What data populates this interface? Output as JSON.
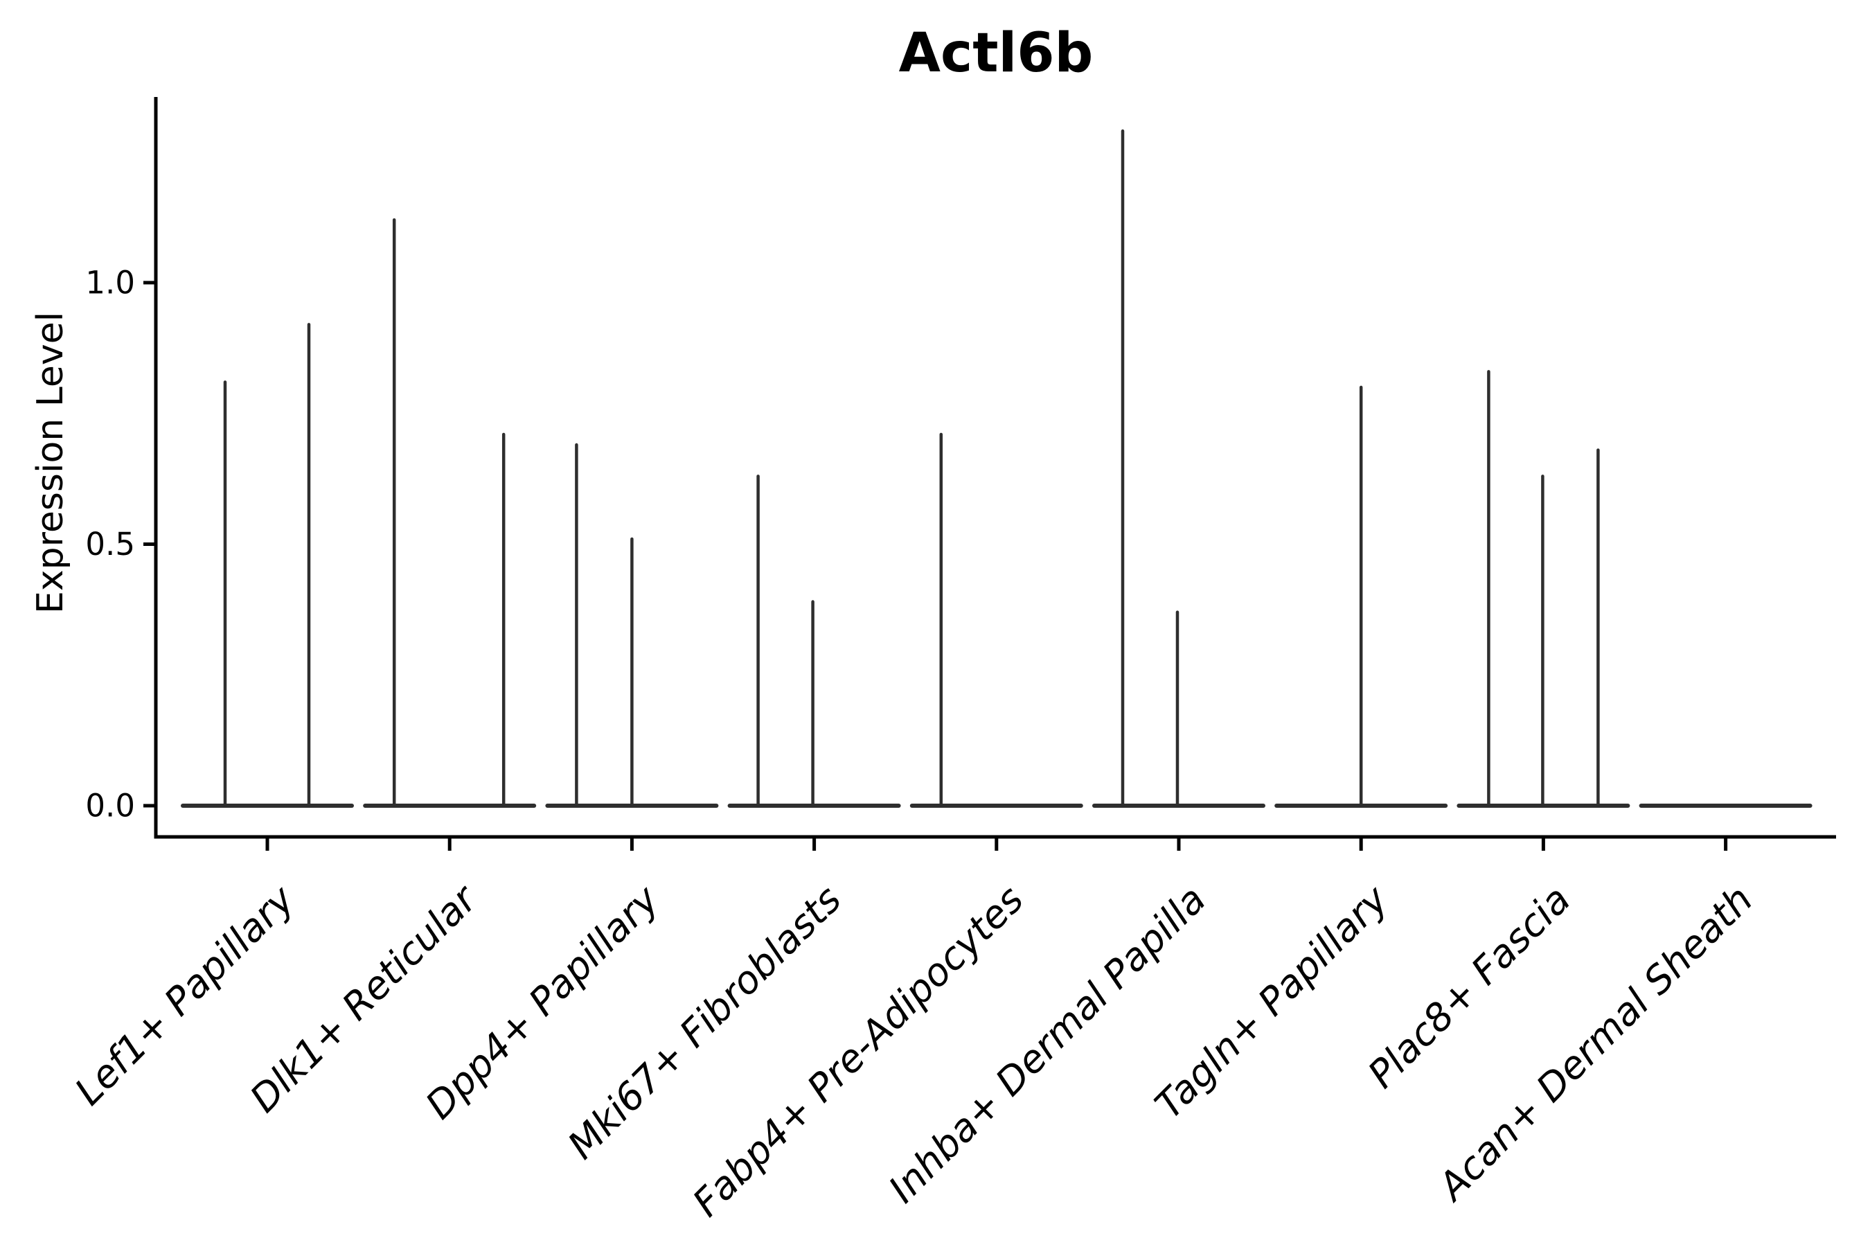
{
  "figure": {
    "background": "#ffffff"
  },
  "chart_data": {
    "type": "violin",
    "title": "Actl6b",
    "ylabel": "Expression Level",
    "xlabel": "",
    "ylim": [
      0,
      1.36
    ],
    "yticks": [
      0.0,
      0.5,
      1.0
    ],
    "ytick_labels": [
      "0.0",
      "0.5",
      "1.0"
    ],
    "grid": false,
    "legend": false,
    "categories": [
      "Lef1+ Papillary",
      "Dlk1+ Reticular",
      "Dpp4+ Papillary",
      "Mki67+ Fibroblasts",
      "Fabp4+ Pre-Adipocytes",
      "Inhba+ Dermal Papilla",
      "Tagln+ Papillary",
      "Plac8+ Fascia",
      "Acan+ Dermal Sheath"
    ],
    "series": [
      {
        "category": "Lef1+ Papillary",
        "spike_values": [
          0.81,
          0.92
        ],
        "spike_offsets": [
          -61,
          60
        ]
      },
      {
        "category": "Dlk1+ Reticular",
        "spike_values": [
          1.12,
          0.71
        ],
        "spike_offsets": [
          -80,
          78
        ]
      },
      {
        "category": "Dpp4+ Papillary",
        "spike_values": [
          0.69,
          0.51
        ],
        "spike_offsets": [
          -80,
          0
        ]
      },
      {
        "category": "Mki67+ Fibroblasts",
        "spike_values": [
          0.63,
          0.39
        ],
        "spike_offsets": [
          -81,
          -2
        ]
      },
      {
        "category": "Fabp4+ Pre-Adipocytes",
        "spike_values": [
          0.71
        ],
        "spike_offsets": [
          -80
        ]
      },
      {
        "category": "Inhba+ Dermal Papilla",
        "spike_values": [
          1.29,
          0.37
        ],
        "spike_offsets": [
          -81,
          -2
        ]
      },
      {
        "category": "Tagln+ Papillary",
        "spike_values": [
          0.8
        ],
        "spike_offsets": [
          0
        ]
      },
      {
        "category": "Plac8+ Fascia",
        "spike_values": [
          0.83,
          0.63,
          0.68
        ],
        "spike_offsets": [
          -79,
          -1,
          79
        ]
      },
      {
        "category": "Acan+ Dermal Sheath",
        "spike_values": [],
        "spike_offsets": []
      }
    ],
    "colors": {
      "violin": "#2e2e2e",
      "axis": "#000000",
      "text": "#000000"
    }
  }
}
